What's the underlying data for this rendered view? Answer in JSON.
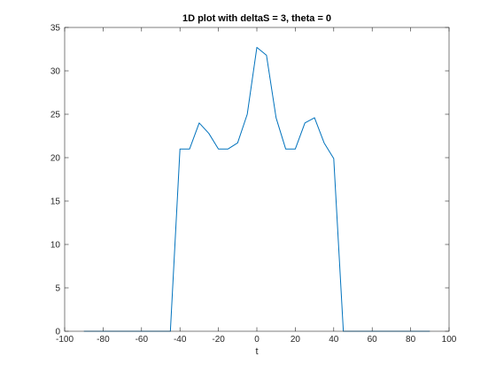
{
  "chart_data": {
    "type": "line",
    "title": "1D plot with deltaS = 3, theta = 0",
    "xlabel": "t",
    "ylabel": "",
    "xlim": [
      -100,
      100
    ],
    "ylim": [
      0,
      35
    ],
    "xticks": [
      -100,
      -80,
      -60,
      -40,
      -20,
      0,
      20,
      40,
      60,
      80,
      100
    ],
    "yticks": [
      0,
      5,
      10,
      15,
      20,
      25,
      30,
      35
    ],
    "grid": false,
    "series": [
      {
        "color": "#0072bd",
        "x": [
          -90,
          -85,
          -80,
          -75,
          -70,
          -65,
          -60,
          -55,
          -50,
          -45,
          -40,
          -35,
          -30,
          -25,
          -20,
          -15,
          -10,
          -5,
          0,
          5,
          10,
          15,
          20,
          25,
          30,
          35,
          40,
          45,
          50,
          55,
          60,
          65,
          70,
          75,
          80,
          85,
          90
        ],
        "y": [
          0,
          0,
          0,
          0,
          0,
          0,
          0,
          0,
          0,
          0,
          21,
          21,
          24,
          22.8,
          21,
          21,
          21.7,
          25,
          32.7,
          31.8,
          24.6,
          21,
          21,
          24,
          24.6,
          21.7,
          19.9,
          0,
          0,
          0,
          0,
          0,
          0,
          0,
          0,
          0,
          0
        ]
      }
    ]
  }
}
